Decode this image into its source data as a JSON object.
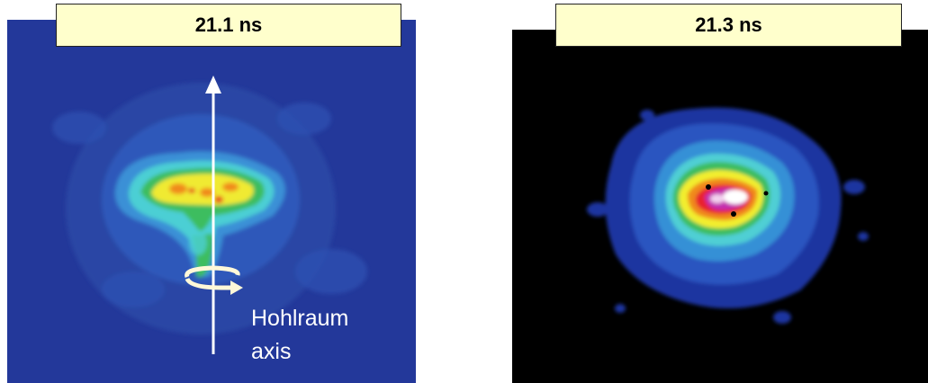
{
  "panels": [
    {
      "time_label": "21.1 ns"
    },
    {
      "time_label": "21.3 ns"
    }
  ],
  "annotation": {
    "line1": "Hohlraum",
    "line2": "axis"
  },
  "colors": {
    "left_background": "#23389a",
    "right_background": "#000000",
    "label_fill": "#ffffcc",
    "false_color_scale": [
      "#23389a",
      "#2f63c8",
      "#3a9ad8",
      "#4fd2d6",
      "#3fbf5c",
      "#f2ee2e",
      "#f08a1c",
      "#e8232e",
      "#c42fb0",
      "#ffffff"
    ]
  }
}
